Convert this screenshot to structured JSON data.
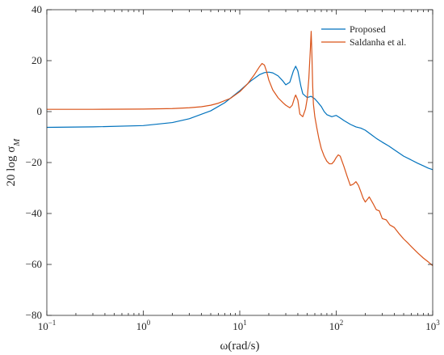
{
  "chart_data": {
    "type": "line",
    "xscale": "log",
    "xlim": [
      0.1,
      1000
    ],
    "ylim": [
      -80,
      40
    ],
    "xlabel": "ω(rad/s)",
    "ylabel": "20 log σ_M",
    "xticks": [
      {
        "value": 0.1,
        "base": "10",
        "exp": "−1"
      },
      {
        "value": 1,
        "base": "10",
        "exp": "0"
      },
      {
        "value": 10,
        "base": "10",
        "exp": "1"
      },
      {
        "value": 100,
        "base": "10",
        "exp": "2"
      },
      {
        "value": 1000,
        "base": "10",
        "exp": "3"
      }
    ],
    "yticks": [
      {
        "value": 40,
        "label": "40"
      },
      {
        "value": 20,
        "label": "20"
      },
      {
        "value": 0,
        "label": "0"
      },
      {
        "value": -20,
        "label": "−20"
      },
      {
        "value": -40,
        "label": "−40"
      },
      {
        "value": -60,
        "label": "−60"
      },
      {
        "value": -80,
        "label": "−80"
      }
    ],
    "legend_position": "top-right",
    "series": [
      {
        "name": "Proposed",
        "color": "#0072BD",
        "x": [
          0.1,
          0.3,
          1,
          2,
          3,
          5,
          7,
          10,
          13,
          16,
          18,
          20,
          22,
          25,
          28,
          30,
          33,
          36,
          38,
          40,
          43,
          45,
          50,
          55,
          60,
          65,
          70,
          75,
          80,
          90,
          100,
          110,
          120,
          140,
          160,
          180,
          200,
          230,
          260,
          300,
          350,
          400,
          500,
          600,
          700,
          800,
          900,
          1000
        ],
        "y": [
          -6.2,
          -6.0,
          -5.5,
          -4.3,
          -2.8,
          0.3,
          3.5,
          8.2,
          12,
          14.5,
          15.3,
          15.5,
          15.2,
          14,
          12,
          10.5,
          11.5,
          16,
          17.8,
          16,
          10,
          7,
          5.5,
          6,
          5,
          3.5,
          2,
          0,
          -1.2,
          -2,
          -1.5,
          -2.5,
          -3.5,
          -5,
          -6,
          -6.5,
          -7.3,
          -9,
          -10.5,
          -12,
          -13.5,
          -15,
          -17.5,
          -19,
          -20.3,
          -21.3,
          -22.2,
          -22.8
        ]
      },
      {
        "name": "Saldanha et al.",
        "color": "#D95319",
        "x": [
          0.1,
          0.3,
          1,
          2,
          3,
          4,
          5,
          6,
          8,
          10,
          12,
          14,
          16,
          17,
          18,
          19,
          20,
          22,
          25,
          28,
          30,
          33,
          35,
          37,
          38,
          40,
          42,
          45,
          48,
          50,
          52,
          54,
          55,
          56,
          57,
          58,
          60,
          63,
          66,
          70,
          75,
          80,
          85,
          90,
          95,
          100,
          105,
          110,
          120,
          130,
          140,
          150,
          160,
          170,
          180,
          190,
          200,
          210,
          220,
          240,
          260,
          280,
          300,
          330,
          360,
          400,
          450,
          500,
          550,
          600,
          700,
          800,
          900,
          1000
        ],
        "y": [
          0.9,
          0.9,
          1.0,
          1.2,
          1.5,
          1.9,
          2.5,
          3.3,
          5.2,
          7.8,
          10.8,
          14.2,
          17.6,
          18.9,
          18.3,
          15.7,
          12.4,
          8.5,
          5.4,
          3.5,
          2.5,
          1.5,
          2.5,
          5.5,
          6.5,
          4.5,
          -1.0,
          -2.0,
          1.0,
          5.0,
          13.0,
          25.0,
          31.5,
          22.0,
          10.0,
          3.0,
          -2.0,
          -6.5,
          -10.5,
          -14.5,
          -17.5,
          -19.5,
          -20.5,
          -20.5,
          -19.5,
          -18.0,
          -17.0,
          -17.5,
          -21.5,
          -25.5,
          -29.0,
          -28.5,
          -27.5,
          -29.0,
          -31.5,
          -34.0,
          -35.5,
          -34.5,
          -33.5,
          -36.0,
          -38.5,
          -39.0,
          -42.0,
          -42.5,
          -44.5,
          -45.5,
          -48.0,
          -50.0,
          -51.5,
          -53.0,
          -55.5,
          -57.5,
          -59.0,
          -60.5
        ]
      }
    ]
  }
}
